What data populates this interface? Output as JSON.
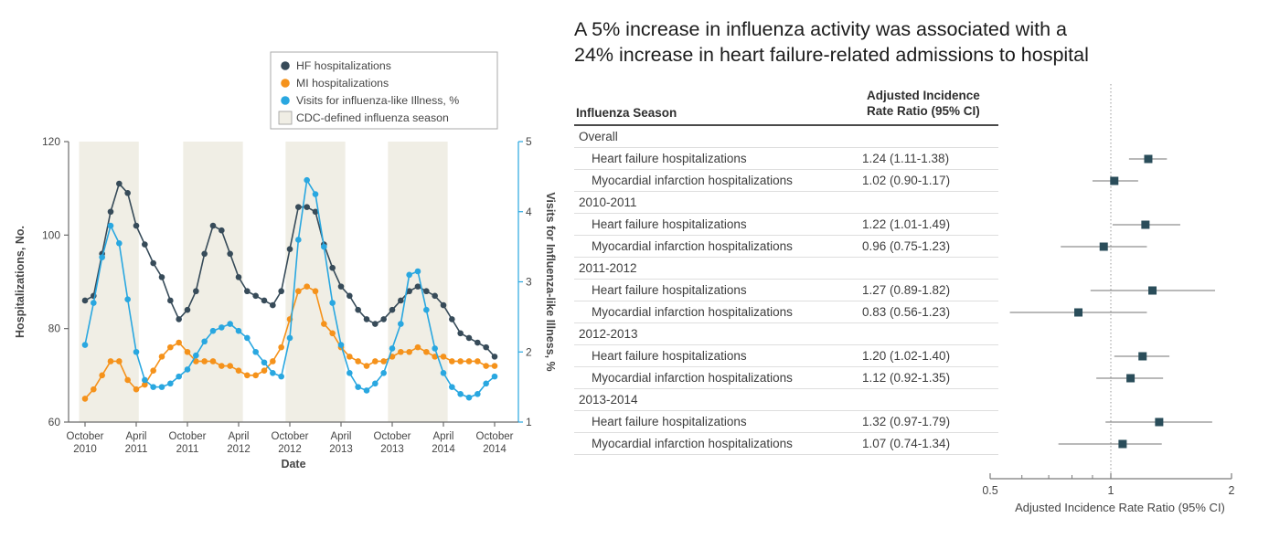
{
  "figure": {
    "headline_line1": "A 5% increase in influenza activity was associated with a",
    "headline_line2": "24% increase in heart failure-related admissions to hospital"
  },
  "colors": {
    "hf": "#374B59",
    "mi": "#F5921B",
    "ili": "#29A7E0",
    "band": "#F0EEE5",
    "forest_marker": "#2A4D5A",
    "forest_ci": "#8F8F8F",
    "axis": "#6b6b6b"
  },
  "legend": {
    "items": [
      {
        "label": "HF hospitalizations",
        "swatch": "dot",
        "color": "#374B59",
        "icon": "hf-dot-icon"
      },
      {
        "label": "MI hospitalizations",
        "swatch": "dot",
        "color": "#F5921B",
        "icon": "mi-dot-icon"
      },
      {
        "label": "Visits for influenza-like Illness, %",
        "swatch": "dot",
        "color": "#29A7E0",
        "icon": "ili-dot-icon"
      },
      {
        "label": "CDC-defined influenza season",
        "swatch": "rect",
        "color": "#F0EEE5",
        "icon": "season-swatch-icon"
      }
    ]
  },
  "table": {
    "header_col1": "Influenza Season",
    "header_col2": "Adjusted Incidence\nRate Ratio (95% CI)",
    "groups": [
      {
        "label": "Overall",
        "rows": [
          [
            "Heart failure hospitalizations",
            "1.24 (1.11-1.38)"
          ],
          [
            "Myocardial infarction hospitalizations",
            "1.02 (0.90-1.17)"
          ]
        ]
      },
      {
        "label": "2010-2011",
        "rows": [
          [
            "Heart failure hospitalizations",
            "1.22 (1.01-1.49)"
          ],
          [
            "Myocardial infarction hospitalizations",
            "0.96 (0.75-1.23)"
          ]
        ]
      },
      {
        "label": "2011-2012",
        "rows": [
          [
            "Heart failure hospitalizations",
            "1.27 (0.89-1.82)"
          ],
          [
            "Myocardial infarction hospitalizations",
            "0.83 (0.56-1.23)"
          ]
        ]
      },
      {
        "label": "2012-2013",
        "rows": [
          [
            "Heart failure hospitalizations",
            "1.20 (1.02-1.40)"
          ],
          [
            "Myocardial infarction hospitalizations",
            "1.12 (0.92-1.35)"
          ]
        ]
      },
      {
        "label": "2013-2014",
        "rows": [
          [
            "Heart failure hospitalizations",
            "1.32 (0.97-1.79)"
          ],
          [
            "Myocardial infarction hospitalizations",
            "1.07 (0.74-1.34)"
          ]
        ]
      }
    ]
  },
  "chart_data": [
    {
      "type": "line",
      "title": "",
      "xlabel": "Date",
      "ylabel_left": "Hospitalizations, No.",
      "ylabel_right": "Visits for Influenza-like Illness, %",
      "x_unit": "month index from October 2010",
      "x_tick_positions": [
        0,
        6,
        12,
        18,
        24,
        30,
        36,
        42,
        48
      ],
      "x_tick_labels": [
        "October 2010",
        "April 2011",
        "October 2011",
        "April 2012",
        "October 2012",
        "April 2013",
        "October 2013",
        "April 2014",
        "October 2014"
      ],
      "ylim_left": [
        60,
        120
      ],
      "yticks_left": [
        60,
        80,
        100,
        120
      ],
      "ylim_right": [
        1,
        5
      ],
      "yticks_right": [
        1,
        2,
        3,
        4,
        5
      ],
      "grid": false,
      "legend_position": "top-center",
      "shaded_bands_months": [
        [
          -0.7,
          6.3
        ],
        [
          11.5,
          18.5
        ],
        [
          23.5,
          30.5
        ],
        [
          35.5,
          42.5
        ]
      ],
      "band_label": "CDC-defined influenza season",
      "series": [
        {
          "name": "HF hospitalizations",
          "axis": "left",
          "color": "#374B59",
          "values": [
            86,
            87,
            96,
            105,
            111,
            109,
            102,
            98,
            94,
            91,
            86,
            82,
            84,
            88,
            96,
            102,
            101,
            96,
            91,
            88,
            87,
            86,
            85,
            88,
            97,
            106,
            106,
            105,
            98,
            93,
            89,
            87,
            84,
            82,
            81,
            82,
            84,
            86,
            88,
            89,
            88,
            87,
            85,
            82,
            79,
            78,
            77,
            76,
            74
          ]
        },
        {
          "name": "MI hospitalizations",
          "axis": "left",
          "color": "#F5921B",
          "values": [
            65,
            67,
            70,
            73,
            73,
            69,
            67,
            68,
            71,
            74,
            76,
            77,
            75,
            73,
            73,
            73,
            72,
            72,
            71,
            70,
            70,
            71,
            73,
            76,
            82,
            88,
            89,
            88,
            81,
            79,
            76,
            74,
            73,
            72,
            73,
            73,
            74,
            75,
            75,
            76,
            75,
            74,
            74,
            73,
            73,
            73,
            73,
            72,
            72
          ]
        },
        {
          "name": "Visits for influenza-like Illness, %",
          "axis": "right",
          "color": "#29A7E0",
          "values": [
            2.1,
            2.7,
            3.35,
            3.8,
            3.55,
            2.75,
            2.0,
            1.6,
            1.5,
            1.5,
            1.55,
            1.65,
            1.75,
            1.95,
            2.15,
            2.3,
            2.35,
            2.4,
            2.3,
            2.2,
            2.0,
            1.85,
            1.7,
            1.65,
            2.2,
            3.6,
            4.45,
            4.25,
            3.5,
            2.7,
            2.1,
            1.7,
            1.5,
            1.45,
            1.55,
            1.7,
            2.05,
            2.4,
            3.1,
            3.15,
            2.6,
            2.05,
            1.7,
            1.5,
            1.4,
            1.35,
            1.4,
            1.55,
            1.65
          ]
        }
      ]
    },
    {
      "type": "forest",
      "xlabel": "Adjusted Incidence Rate Ratio (95% CI)",
      "xscale": "log",
      "xlim": [
        0.5,
        2
      ],
      "xticks_major": [
        0.5,
        1,
        2
      ],
      "xtick_labels": [
        "0.5",
        "1",
        "2"
      ],
      "xticks_minor": [
        0.6,
        0.7,
        0.8,
        0.9
      ],
      "refline": 1,
      "rows": [
        {
          "group": "Overall",
          "label": "Heart failure hospitalizations",
          "est": 1.24,
          "lo": 1.11,
          "hi": 1.38
        },
        {
          "group": "Overall",
          "label": "Myocardial infarction hospitalizations",
          "est": 1.02,
          "lo": 0.9,
          "hi": 1.17
        },
        {
          "group": "2010-2011",
          "label": "Heart failure hospitalizations",
          "est": 1.22,
          "lo": 1.01,
          "hi": 1.49
        },
        {
          "group": "2010-2011",
          "label": "Myocardial infarction hospitalizations",
          "est": 0.96,
          "lo": 0.75,
          "hi": 1.23
        },
        {
          "group": "2011-2012",
          "label": "Heart failure hospitalizations",
          "est": 1.27,
          "lo": 0.89,
          "hi": 1.82
        },
        {
          "group": "2011-2012",
          "label": "Myocardial infarction hospitalizations",
          "est": 0.83,
          "lo": 0.56,
          "hi": 1.23
        },
        {
          "group": "2012-2013",
          "label": "Heart failure hospitalizations",
          "est": 1.2,
          "lo": 1.02,
          "hi": 1.4
        },
        {
          "group": "2012-2013",
          "label": "Myocardial infarction hospitalizations",
          "est": 1.12,
          "lo": 0.92,
          "hi": 1.35
        },
        {
          "group": "2013-2014",
          "label": "Heart failure hospitalizations",
          "est": 1.32,
          "lo": 0.97,
          "hi": 1.79
        },
        {
          "group": "2013-2014",
          "label": "Myocardial infarction hospitalizations",
          "est": 1.07,
          "lo": 0.74,
          "hi": 1.34
        }
      ]
    }
  ]
}
